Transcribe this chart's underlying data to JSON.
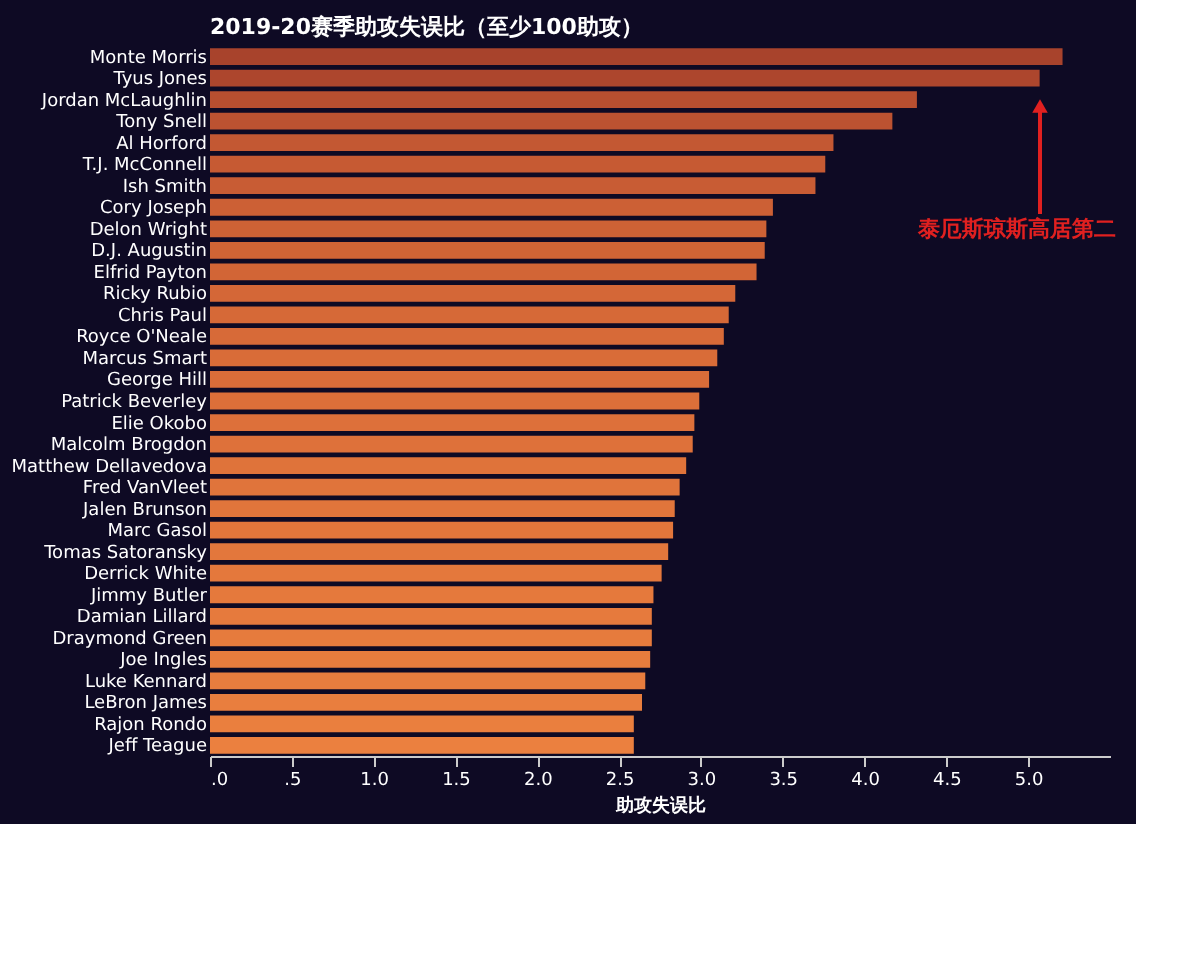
{
  "chart_data": {
    "type": "bar",
    "orientation": "horizontal",
    "title": "2019-20赛季助攻失误比（至少100助攻）",
    "xlabel": "助攻失误比",
    "categories": [
      "Monte Morris",
      "Tyus Jones",
      "Jordan McLaughlin",
      "Tony Snell",
      "Al Horford",
      "T.J. McConnell",
      "Ish Smith",
      "Cory Joseph",
      "Delon Wright",
      "D.J. Augustin",
      "Elfrid Payton",
      "Ricky Rubio",
      "Chris Paul",
      "Royce O'Neale",
      "Marcus Smart",
      "George Hill",
      "Patrick Beverley",
      "Elie Okobo",
      "Malcolm Brogdon",
      "Matthew Dellavedova",
      "Fred VanVleet",
      "Jalen Brunson",
      "Marc Gasol",
      "Tomas Satoransky",
      "Derrick White",
      "Jimmy Butler",
      "Damian Lillard",
      "Draymond Green",
      "Joe Ingles",
      "Luke Kennard",
      "LeBron James",
      "Rajon Rondo",
      "Jeff Teague"
    ],
    "values": [
      5.21,
      5.07,
      4.32,
      4.17,
      3.81,
      3.76,
      3.7,
      3.44,
      3.4,
      3.39,
      3.34,
      3.21,
      3.17,
      3.14,
      3.1,
      3.05,
      2.99,
      2.96,
      2.95,
      2.91,
      2.87,
      2.84,
      2.83,
      2.8,
      2.76,
      2.71,
      2.7,
      2.7,
      2.69,
      2.66,
      2.64,
      2.59,
      2.59
    ],
    "colors": [
      "#a8432c",
      "#ad462d",
      "#b84f30",
      "#bc5231",
      "#c35833",
      "#c65a33",
      "#c85c34",
      "#cc6035",
      "#ce6235",
      "#d06435",
      "#d26536",
      "#d46737",
      "#d66937",
      "#d76a38",
      "#d96c38",
      "#da6d39",
      "#dc6f39",
      "#dd703a",
      "#de713a",
      "#df733a",
      "#e0743b",
      "#e1753b",
      "#e2763b",
      "#e3773c",
      "#e4783c",
      "#e5793c",
      "#e67a3d",
      "#e67b3d",
      "#e77c3d",
      "#e87d3e",
      "#e97e3e",
      "#ea7f3e",
      "#eb803f"
    ],
    "xlim": [
      0,
      5.5
    ],
    "xticks": [
      {
        "value": 0,
        "label": ".0"
      },
      {
        "value": 0.5,
        "label": ".5"
      },
      {
        "value": 1,
        "label": "1.0"
      },
      {
        "value": 1.5,
        "label": "1.5"
      },
      {
        "value": 2,
        "label": "2.0"
      },
      {
        "value": 2.5,
        "label": "2.5"
      },
      {
        "value": 3,
        "label": "3.0"
      },
      {
        "value": 3.5,
        "label": "3.5"
      },
      {
        "value": 4,
        "label": "4.0"
      },
      {
        "value": 4.5,
        "label": "4.5"
      },
      {
        "value": 5,
        "label": "5.0"
      }
    ],
    "annotations": [
      "泰厄斯琼斯高居第二"
    ],
    "grid": false
  }
}
